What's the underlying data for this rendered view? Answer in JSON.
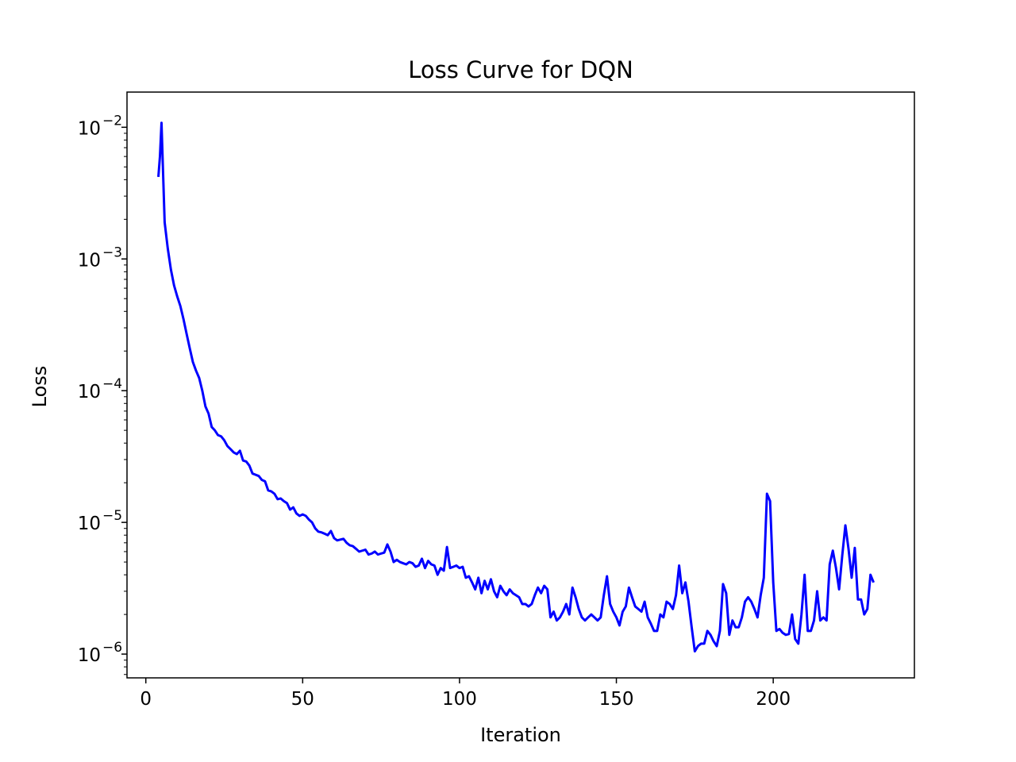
{
  "chart_data": {
    "type": "line",
    "title": "Loss Curve for DQN",
    "xlabel": "Iteration",
    "ylabel": "Loss",
    "yscale": "log",
    "xlim": [
      -6,
      245
    ],
    "ylim": [
      6.6e-07,
      0.0185
    ],
    "x_ticks": [
      0,
      50,
      100,
      150,
      200
    ],
    "y_ticks": [
      {
        "value": 0.01,
        "base": "10",
        "exp": "−2"
      },
      {
        "value": 0.001,
        "base": "10",
        "exp": "−3"
      },
      {
        "value": 0.0001,
        "base": "10",
        "exp": "−4"
      },
      {
        "value": 1e-05,
        "base": "10",
        "exp": "−5"
      },
      {
        "value": 1e-06,
        "base": "10",
        "exp": "−6"
      }
    ],
    "grid": false,
    "line_color": "#0000ff",
    "series": [
      {
        "points": [
          [
            4,
            0.0042
          ],
          [
            4.5,
            0.006
          ],
          [
            5,
            0.0108
          ],
          [
            5.5,
            0.0045
          ],
          [
            6,
            0.0019
          ],
          [
            7,
            0.0012
          ],
          [
            8,
            0.00083
          ],
          [
            9,
            0.00063
          ],
          [
            10,
            0.00052
          ],
          [
            11,
            0.00044
          ],
          [
            12,
            0.00035
          ],
          [
            13,
            0.00027
          ],
          [
            14,
            0.00021
          ],
          [
            15,
            0.000165
          ],
          [
            16,
            0.000142
          ],
          [
            17,
            0.000125
          ],
          [
            18,
            0.0001
          ],
          [
            19,
            7.6e-05
          ],
          [
            20,
            6.7e-05
          ],
          [
            21,
            5.3e-05
          ],
          [
            22,
            5e-05
          ],
          [
            23,
            4.6e-05
          ],
          [
            24,
            4.5e-05
          ],
          [
            25,
            4.2e-05
          ],
          [
            26,
            3.8e-05
          ],
          [
            27,
            3.6e-05
          ],
          [
            28,
            3.4e-05
          ],
          [
            29,
            3.3e-05
          ],
          [
            30,
            3.5e-05
          ],
          [
            31,
            2.95e-05
          ],
          [
            32,
            2.9e-05
          ],
          [
            33,
            2.7e-05
          ],
          [
            34,
            2.35e-05
          ],
          [
            35,
            2.3e-05
          ],
          [
            36,
            2.25e-05
          ],
          [
            37,
            2.1e-05
          ],
          [
            38,
            2.05e-05
          ],
          [
            39,
            1.75e-05
          ],
          [
            40,
            1.72e-05
          ],
          [
            41,
            1.65e-05
          ],
          [
            42,
            1.5e-05
          ],
          [
            43,
            1.52e-05
          ],
          [
            44,
            1.45e-05
          ],
          [
            45,
            1.4e-05
          ],
          [
            46,
            1.25e-05
          ],
          [
            47,
            1.3e-05
          ],
          [
            48,
            1.17e-05
          ],
          [
            49,
            1.12e-05
          ],
          [
            50,
            1.15e-05
          ],
          [
            51,
            1.12e-05
          ],
          [
            52,
            1.05e-05
          ],
          [
            53,
            1e-05
          ],
          [
            54,
            9e-06
          ],
          [
            55,
            8.5e-06
          ],
          [
            56,
            8.4e-06
          ],
          [
            57,
            8.2e-06
          ],
          [
            58,
            8e-06
          ],
          [
            59,
            8.6e-06
          ],
          [
            60,
            7.6e-06
          ],
          [
            61,
            7.3e-06
          ],
          [
            62,
            7.4e-06
          ],
          [
            63,
            7.5e-06
          ],
          [
            64,
            7e-06
          ],
          [
            65,
            6.7e-06
          ],
          [
            66,
            6.6e-06
          ],
          [
            67,
            6.3e-06
          ],
          [
            68,
            6e-06
          ],
          [
            69,
            6.1e-06
          ],
          [
            70,
            6.2e-06
          ],
          [
            71,
            5.7e-06
          ],
          [
            72,
            5.8e-06
          ],
          [
            73,
            6e-06
          ],
          [
            74,
            5.7e-06
          ],
          [
            75,
            5.8e-06
          ],
          [
            76,
            5.9e-06
          ],
          [
            77,
            6.8e-06
          ],
          [
            78,
            6e-06
          ],
          [
            79,
            5e-06
          ],
          [
            80,
            5.2e-06
          ],
          [
            81,
            5e-06
          ],
          [
            82,
            4.9e-06
          ],
          [
            83,
            4.8e-06
          ],
          [
            84,
            5e-06
          ],
          [
            85,
            4.9e-06
          ],
          [
            86,
            4.6e-06
          ],
          [
            87,
            4.7e-06
          ],
          [
            88,
            5.3e-06
          ],
          [
            89,
            4.5e-06
          ],
          [
            90,
            5.1e-06
          ],
          [
            91,
            4.8e-06
          ],
          [
            92,
            4.7e-06
          ],
          [
            93,
            4e-06
          ],
          [
            94,
            4.5e-06
          ],
          [
            95,
            4.3e-06
          ],
          [
            96,
            6.5e-06
          ],
          [
            97,
            4.5e-06
          ],
          [
            98,
            4.6e-06
          ],
          [
            99,
            4.7e-06
          ],
          [
            100,
            4.5e-06
          ],
          [
            101,
            4.6e-06
          ],
          [
            102,
            3.8e-06
          ],
          [
            103,
            3.9e-06
          ],
          [
            104,
            3.5e-06
          ],
          [
            105,
            3.1e-06
          ],
          [
            106,
            3.8e-06
          ],
          [
            107,
            2.9e-06
          ],
          [
            108,
            3.6e-06
          ],
          [
            109,
            3.1e-06
          ],
          [
            110,
            3.7e-06
          ],
          [
            111,
            3e-06
          ],
          [
            112,
            2.7e-06
          ],
          [
            113,
            3.3e-06
          ],
          [
            114,
            3e-06
          ],
          [
            115,
            2.8e-06
          ],
          [
            116,
            3.1e-06
          ],
          [
            117,
            2.9e-06
          ],
          [
            118,
            2.8e-06
          ],
          [
            119,
            2.7e-06
          ],
          [
            120,
            2.4e-06
          ],
          [
            121,
            2.4e-06
          ],
          [
            122,
            2.3e-06
          ],
          [
            123,
            2.4e-06
          ],
          [
            124,
            2.8e-06
          ],
          [
            125,
            3.2e-06
          ],
          [
            126,
            2.9e-06
          ],
          [
            127,
            3.3e-06
          ],
          [
            128,
            3.1e-06
          ],
          [
            129,
            1.9e-06
          ],
          [
            130,
            2.1e-06
          ],
          [
            131,
            1.8e-06
          ],
          [
            132,
            1.9e-06
          ],
          [
            133,
            2.1e-06
          ],
          [
            134,
            2.4e-06
          ],
          [
            135,
            2e-06
          ],
          [
            136,
            3.2e-06
          ],
          [
            137,
            2.7e-06
          ],
          [
            138,
            2.2e-06
          ],
          [
            139,
            1.9e-06
          ],
          [
            140,
            1.8e-06
          ],
          [
            141,
            1.9e-06
          ],
          [
            142,
            2e-06
          ],
          [
            143,
            1.9e-06
          ],
          [
            144,
            1.8e-06
          ],
          [
            145,
            1.9e-06
          ],
          [
            146,
            2.8e-06
          ],
          [
            147,
            3.9e-06
          ],
          [
            148,
            2.4e-06
          ],
          [
            149,
            2.1e-06
          ],
          [
            150,
            1.9e-06
          ],
          [
            151,
            1.65e-06
          ],
          [
            152,
            2.1e-06
          ],
          [
            153,
            2.3e-06
          ],
          [
            154,
            3.2e-06
          ],
          [
            155,
            2.7e-06
          ],
          [
            156,
            2.3e-06
          ],
          [
            157,
            2.2e-06
          ],
          [
            158,
            2.1e-06
          ],
          [
            159,
            2.5e-06
          ],
          [
            160,
            1.9e-06
          ],
          [
            161,
            1.7e-06
          ],
          [
            162,
            1.5e-06
          ],
          [
            163,
            1.5e-06
          ],
          [
            164,
            2e-06
          ],
          [
            165,
            1.9e-06
          ],
          [
            166,
            2.5e-06
          ],
          [
            167,
            2.4e-06
          ],
          [
            168,
            2.2e-06
          ],
          [
            169,
            2.8e-06
          ],
          [
            170,
            4.7e-06
          ],
          [
            171,
            2.9e-06
          ],
          [
            172,
            3.5e-06
          ],
          [
            173,
            2.5e-06
          ],
          [
            174,
            1.6e-06
          ],
          [
            175,
            1.05e-06
          ],
          [
            176,
            1.15e-06
          ],
          [
            177,
            1.2e-06
          ],
          [
            178,
            1.2e-06
          ],
          [
            179,
            1.5e-06
          ],
          [
            180,
            1.4e-06
          ],
          [
            181,
            1.25e-06
          ],
          [
            182,
            1.15e-06
          ],
          [
            183,
            1.5e-06
          ],
          [
            184,
            3.4e-06
          ],
          [
            185,
            2.9e-06
          ],
          [
            186,
            1.4e-06
          ],
          [
            187,
            1.8e-06
          ],
          [
            188,
            1.6e-06
          ],
          [
            189,
            1.6e-06
          ],
          [
            190,
            1.9e-06
          ],
          [
            191,
            2.5e-06
          ],
          [
            192,
            2.7e-06
          ],
          [
            193,
            2.5e-06
          ],
          [
            194,
            2.2e-06
          ],
          [
            195,
            1.9e-06
          ],
          [
            196,
            2.8e-06
          ],
          [
            197,
            3.8e-06
          ],
          [
            198,
            1.65e-05
          ],
          [
            199,
            1.45e-05
          ],
          [
            200,
            3.5e-06
          ],
          [
            201,
            1.5e-06
          ],
          [
            202,
            1.55e-06
          ],
          [
            203,
            1.45e-06
          ],
          [
            204,
            1.4e-06
          ],
          [
            205,
            1.42e-06
          ],
          [
            206,
            2e-06
          ],
          [
            207,
            1.3e-06
          ],
          [
            208,
            1.2e-06
          ],
          [
            209,
            2e-06
          ],
          [
            210,
            4e-06
          ],
          [
            211,
            1.5e-06
          ],
          [
            212,
            1.5e-06
          ],
          [
            213,
            1.8e-06
          ],
          [
            214,
            3e-06
          ],
          [
            215,
            1.8e-06
          ],
          [
            216,
            1.9e-06
          ],
          [
            217,
            1.8e-06
          ],
          [
            218,
            4.8e-06
          ],
          [
            219,
            6.1e-06
          ],
          [
            220,
            4.5e-06
          ],
          [
            221,
            3.1e-06
          ],
          [
            222,
            5.6e-06
          ],
          [
            223,
            9.5e-06
          ],
          [
            224,
            6.3e-06
          ],
          [
            225,
            3.8e-06
          ],
          [
            226,
            6.4e-06
          ],
          [
            227,
            2.6e-06
          ],
          [
            228,
            2.6e-06
          ],
          [
            229,
            2e-06
          ],
          [
            230,
            2.2e-06
          ],
          [
            231,
            4e-06
          ],
          [
            232,
            3.5e-06
          ]
        ]
      }
    ]
  }
}
